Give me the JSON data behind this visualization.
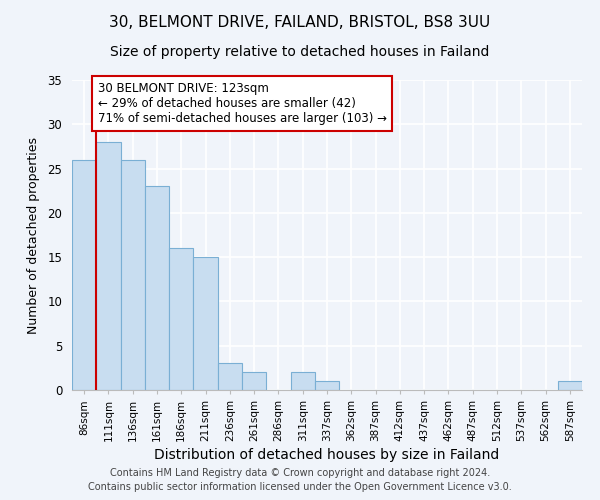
{
  "title": "30, BELMONT DRIVE, FAILAND, BRISTOL, BS8 3UU",
  "subtitle": "Size of property relative to detached houses in Failand",
  "xlabel": "Distribution of detached houses by size in Failand",
  "ylabel": "Number of detached properties",
  "bar_labels": [
    "86sqm",
    "111sqm",
    "136sqm",
    "161sqm",
    "186sqm",
    "211sqm",
    "236sqm",
    "261sqm",
    "286sqm",
    "311sqm",
    "337sqm",
    "362sqm",
    "387sqm",
    "412sqm",
    "437sqm",
    "462sqm",
    "487sqm",
    "512sqm",
    "537sqm",
    "562sqm",
    "587sqm"
  ],
  "bar_values": [
    26,
    28,
    26,
    23,
    16,
    15,
    3,
    2,
    0,
    2,
    1,
    0,
    0,
    0,
    0,
    0,
    0,
    0,
    0,
    0,
    1
  ],
  "bar_color": "#c8ddf0",
  "bar_edge_color": "#7aafd4",
  "vline_color": "#cc0000",
  "annotation_title": "30 BELMONT DRIVE: 123sqm",
  "annotation_line1": "← 29% of detached houses are smaller (42)",
  "annotation_line2": "71% of semi-detached houses are larger (103) →",
  "annotation_box_color": "#ffffff",
  "annotation_border_color": "#cc0000",
  "ylim": [
    0,
    35
  ],
  "yticks": [
    0,
    5,
    10,
    15,
    20,
    25,
    30,
    35
  ],
  "footer1": "Contains HM Land Registry data © Crown copyright and database right 2024.",
  "footer2": "Contains public sector information licensed under the Open Government Licence v3.0.",
  "bg_color": "#f0f4fa",
  "grid_color": "#ffffff",
  "title_fontsize": 11,
  "subtitle_fontsize": 10,
  "xlabel_fontsize": 10,
  "ylabel_fontsize": 9
}
